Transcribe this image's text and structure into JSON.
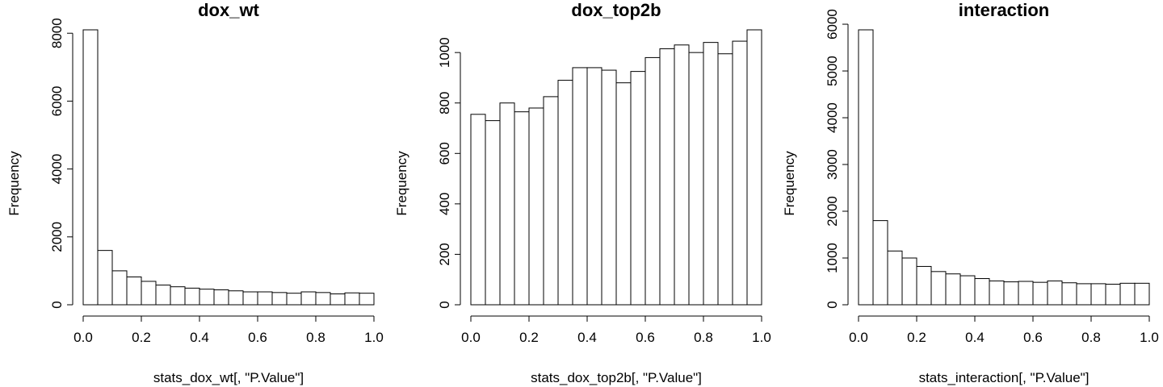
{
  "chart_data": [
    {
      "type": "bar",
      "title": "dox_wt",
      "xlabel": "stats_dox_wt[, \"P.Value\"]",
      "ylabel": "Frequency",
      "bin_edges": [
        0,
        0.05,
        0.1,
        0.15,
        0.2,
        0.25,
        0.3,
        0.35,
        0.4,
        0.45,
        0.5,
        0.55,
        0.6,
        0.65,
        0.7,
        0.75,
        0.8,
        0.85,
        0.9,
        0.95,
        1.0
      ],
      "values": [
        8100,
        1600,
        1000,
        820,
        690,
        580,
        530,
        490,
        460,
        440,
        410,
        380,
        380,
        360,
        340,
        380,
        360,
        320,
        350,
        340
      ],
      "xlim": [
        0,
        1
      ],
      "ylim": [
        0,
        8100
      ],
      "xticks": [
        "0.0",
        "0.2",
        "0.4",
        "0.6",
        "0.8",
        "1.0"
      ],
      "yticks": [
        "0",
        "2000",
        "4000",
        "6000",
        "8000"
      ]
    },
    {
      "type": "bar",
      "title": "dox_top2b",
      "xlabel": "stats_dox_top2b[, \"P.Value\"]",
      "ylabel": "Frequency",
      "bin_edges": [
        0,
        0.05,
        0.1,
        0.15,
        0.2,
        0.25,
        0.3,
        0.35,
        0.4,
        0.45,
        0.5,
        0.55,
        0.6,
        0.65,
        0.7,
        0.75,
        0.8,
        0.85,
        0.9,
        0.95,
        1.0
      ],
      "values": [
        755,
        730,
        800,
        765,
        780,
        825,
        890,
        940,
        940,
        930,
        880,
        925,
        980,
        1015,
        1030,
        1000,
        1040,
        995,
        1045,
        1090
      ],
      "xlim": [
        0,
        1
      ],
      "ylim": [
        0,
        1090
      ],
      "xticks": [
        "0.0",
        "0.2",
        "0.4",
        "0.6",
        "0.8",
        "1.0"
      ],
      "yticks": [
        "0",
        "200",
        "400",
        "600",
        "800",
        "1000"
      ]
    },
    {
      "type": "bar",
      "title": "interaction",
      "xlabel": "stats_interaction[, \"P.Value\"]",
      "ylabel": "Frequency",
      "bin_edges": [
        0,
        0.05,
        0.1,
        0.15,
        0.2,
        0.25,
        0.3,
        0.35,
        0.4,
        0.45,
        0.5,
        0.55,
        0.6,
        0.65,
        0.7,
        0.75,
        0.8,
        0.85,
        0.9,
        0.95,
        1.0
      ],
      "values": [
        5880,
        1800,
        1150,
        1000,
        820,
        710,
        660,
        620,
        560,
        510,
        490,
        500,
        480,
        510,
        470,
        450,
        450,
        440,
        460,
        460
      ],
      "xlim": [
        0,
        1
      ],
      "ylim": [
        0,
        5880
      ],
      "xticks": [
        "0.0",
        "0.2",
        "0.4",
        "0.6",
        "0.8",
        "1.0"
      ],
      "yticks": [
        "0",
        "1000",
        "2000",
        "3000",
        "4000",
        "5000",
        "6000"
      ]
    }
  ]
}
